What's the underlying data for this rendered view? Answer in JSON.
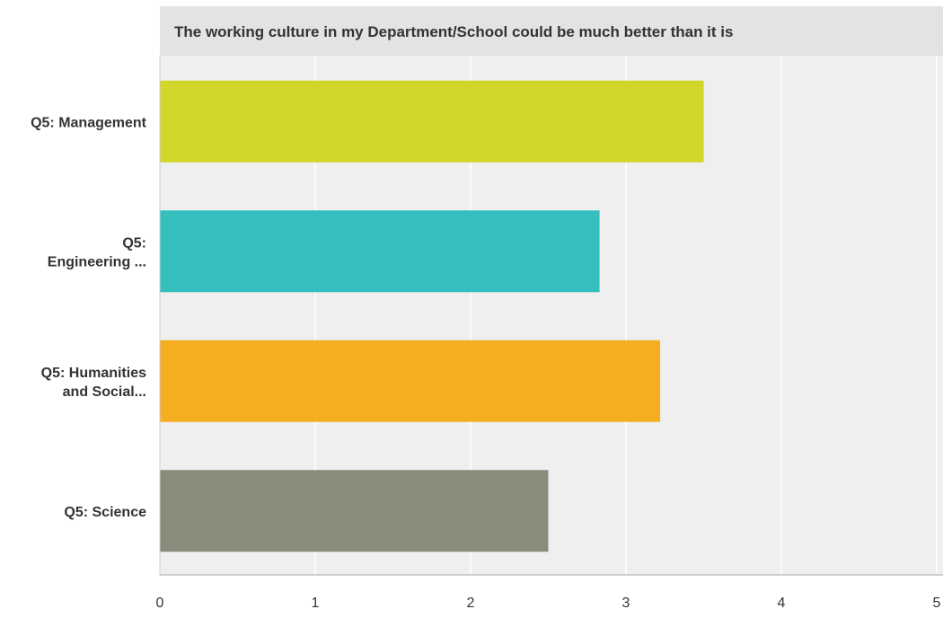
{
  "chart_data": {
    "type": "bar",
    "orientation": "horizontal",
    "title": "The working culture in my Department/School could be much better than it is",
    "categories": [
      [
        "Q5: Management"
      ],
      [
        "Q5:",
        "Engineering ..."
      ],
      [
        "Q5: Humanities",
        "and Social..."
      ],
      [
        "Q5: Science"
      ]
    ],
    "values": [
      3.5,
      2.83,
      3.22,
      2.5
    ],
    "colors": [
      "#d0d62a",
      "#34bebe",
      "#f6ae21",
      "#8a8b7a"
    ],
    "x_ticks": [
      "0",
      "1",
      "2",
      "3",
      "4",
      "5"
    ],
    "xlim": [
      0,
      5
    ],
    "grid": true,
    "xlabel": "",
    "ylabel": ""
  }
}
